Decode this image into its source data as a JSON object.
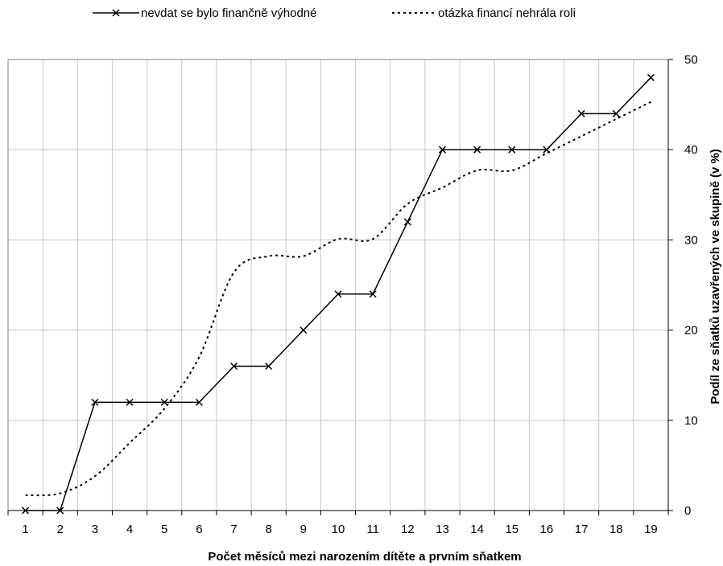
{
  "chart_data": {
    "type": "line",
    "x": [
      1,
      2,
      3,
      4,
      5,
      6,
      7,
      8,
      9,
      10,
      11,
      12,
      13,
      14,
      15,
      16,
      17,
      18,
      19
    ],
    "series": [
      {
        "name": "nevdat se bylo finančně výhodné",
        "style": "solid-with-x-markers",
        "color": "#000000",
        "values": [
          0,
          0,
          12,
          12,
          12,
          12,
          16,
          16,
          20,
          24,
          24,
          32,
          40,
          40,
          40,
          40,
          44,
          44,
          48
        ]
      },
      {
        "name": "otázka financí nehrála roli",
        "style": "dotted",
        "color": "#000000",
        "values": [
          1.7,
          1.9,
          3.8,
          7.5,
          11.3,
          17,
          26.4,
          28.2,
          28.2,
          30.1,
          30.1,
          34,
          35.8,
          37.7,
          37.7,
          39.6,
          41.5,
          43.4,
          45.3
        ]
      }
    ],
    "title": "",
    "xlabel": "Počet měsíců mezi narozením dítěte a prvním sňatkem",
    "ylabel": "Podíl ze sňatků uzavřených ve skupině (v %)",
    "ylim": [
      0,
      50
    ],
    "yticks": [
      "0",
      "10",
      "20",
      "30",
      "40",
      "50"
    ],
    "xticks": [
      "1",
      "2",
      "3",
      "4",
      "5",
      "6",
      "7",
      "8",
      "9",
      "10",
      "11",
      "12",
      "13",
      "14",
      "15",
      "16",
      "17",
      "18",
      "19"
    ],
    "y_axis_side": "right",
    "grid": true,
    "legend_position": "top"
  }
}
